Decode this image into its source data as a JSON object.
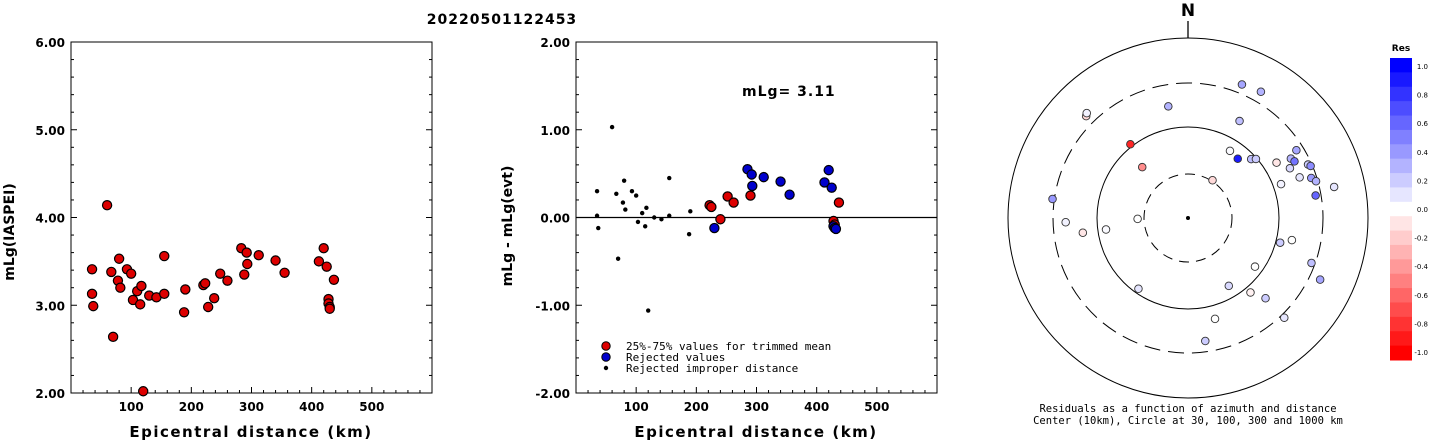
{
  "event_id": "20220501122453",
  "chart_data": [
    {
      "type": "scatter",
      "name": "magnitude-vs-distance",
      "xlabel": "Epicentral distance (km)",
      "ylabel": "mLg(IASPEI)",
      "xlim": [
        0,
        600
      ],
      "ylim": [
        2.0,
        6.0
      ],
      "xticks": [
        "100",
        "200",
        "300",
        "400",
        "500"
      ],
      "yticks": [
        "2.00",
        "3.00",
        "4.00",
        "5.00",
        "6.00"
      ],
      "points": [
        [
          35,
          3.41
        ],
        [
          35,
          3.13
        ],
        [
          37,
          2.99
        ],
        [
          60,
          4.14
        ],
        [
          67,
          3.38
        ],
        [
          70,
          2.64
        ],
        [
          78,
          3.28
        ],
        [
          80,
          3.53
        ],
        [
          82,
          3.2
        ],
        [
          93,
          3.41
        ],
        [
          100,
          3.36
        ],
        [
          103,
          3.06
        ],
        [
          110,
          3.16
        ],
        [
          115,
          3.01
        ],
        [
          117,
          3.22
        ],
        [
          120,
          2.02
        ],
        [
          130,
          3.11
        ],
        [
          142,
          3.09
        ],
        [
          155,
          3.56
        ],
        [
          155,
          3.13
        ],
        [
          188,
          2.92
        ],
        [
          190,
          3.18
        ],
        [
          220,
          3.23
        ],
        [
          223,
          3.25
        ],
        [
          228,
          2.98
        ],
        [
          238,
          3.08
        ],
        [
          248,
          3.36
        ],
        [
          260,
          3.28
        ],
        [
          283,
          3.65
        ],
        [
          288,
          3.35
        ],
        [
          292,
          3.6
        ],
        [
          293,
          3.47
        ],
        [
          312,
          3.57
        ],
        [
          340,
          3.51
        ],
        [
          355,
          3.37
        ],
        [
          412,
          3.5
        ],
        [
          420,
          3.65
        ],
        [
          425,
          3.44
        ],
        [
          428,
          3.07
        ],
        [
          428,
          3.02
        ],
        [
          430,
          2.98
        ],
        [
          430,
          2.96
        ],
        [
          437,
          3.29
        ]
      ]
    },
    {
      "type": "scatter",
      "name": "residual-vs-distance",
      "xlabel": "Epicentral distance (km)",
      "ylabel": "mLg - mLg(evt)",
      "annotation": "mLg= 3.11",
      "xlim": [
        0,
        600
      ],
      "ylim": [
        -2.0,
        2.0
      ],
      "xticks": [
        "100",
        "200",
        "300",
        "400",
        "500"
      ],
      "yticks": [
        "-2.00",
        "-1.00",
        "0.00",
        "1.00",
        "2.00"
      ],
      "legend": {
        "placement": "bottom-left",
        "entries": [
          {
            "label": "25%-75% values for trimmed mean",
            "color": "#dd0000",
            "marker": "large"
          },
          {
            "label": "Rejected values",
            "color": "#0000cc",
            "marker": "large"
          },
          {
            "label": "Rejected improper distance",
            "color": "#000000",
            "marker": "small"
          }
        ]
      },
      "series": [
        {
          "name": "25%-75% values for trimmed mean",
          "color": "#dd0000",
          "points": [
            [
              222,
              0.14
            ],
            [
              225,
              0.12
            ],
            [
              240,
              -0.02
            ],
            [
              252,
              0.24
            ],
            [
              262,
              0.17
            ],
            [
              290,
              0.25
            ],
            [
              428,
              -0.04
            ],
            [
              430,
              -0.08
            ],
            [
              437,
              0.17
            ]
          ]
        },
        {
          "name": "Rejected values",
          "color": "#0000cc",
          "points": [
            [
              230,
              -0.12
            ],
            [
              285,
              0.55
            ],
            [
              292,
              0.49
            ],
            [
              293,
              0.36
            ],
            [
              312,
              0.46
            ],
            [
              340,
              0.41
            ],
            [
              355,
              0.26
            ],
            [
              413,
              0.4
            ],
            [
              420,
              0.54
            ],
            [
              425,
              0.34
            ],
            [
              428,
              -0.1
            ],
            [
              430,
              -0.12
            ],
            [
              432,
              -0.13
            ]
          ]
        },
        {
          "name": "Rejected improper distance",
          "color": "#000000",
          "points": [
            [
              35,
              0.3
            ],
            [
              35,
              0.02
            ],
            [
              37,
              -0.12
            ],
            [
              60,
              1.03
            ],
            [
              67,
              0.27
            ],
            [
              70,
              -0.47
            ],
            [
              78,
              0.17
            ],
            [
              80,
              0.42
            ],
            [
              82,
              0.09
            ],
            [
              93,
              0.3
            ],
            [
              100,
              0.25
            ],
            [
              103,
              -0.05
            ],
            [
              110,
              0.05
            ],
            [
              115,
              -0.1
            ],
            [
              117,
              0.11
            ],
            [
              120,
              -1.06
            ],
            [
              130,
              0.0
            ],
            [
              142,
              -0.02
            ],
            [
              155,
              0.45
            ],
            [
              155,
              0.02
            ],
            [
              188,
              -0.19
            ],
            [
              190,
              0.07
            ]
          ]
        }
      ]
    },
    {
      "type": "scatter",
      "name": "azimuth-residual-polar",
      "north_label": "N",
      "caption_line1": "Residuals as a function of azimuth and distance",
      "caption_line2": "Center (10km), Circle at 30, 100, 300 and 1000 km",
      "ring_distances_km": [
        30,
        100,
        300,
        1000
      ],
      "stations": [
        {
          "az": 315,
          "r": 0.8,
          "res": -0.15
        },
        {
          "az": 316,
          "r": 0.81,
          "res": 0.05
        },
        {
          "az": 322,
          "r": 0.52,
          "res": -0.85
        },
        {
          "az": 318,
          "r": 0.38,
          "res": -0.45
        },
        {
          "az": 350,
          "r": 0.63,
          "res": 0.3
        },
        {
          "az": 22,
          "r": 0.8,
          "res": 0.35
        },
        {
          "az": 30,
          "r": 0.81,
          "res": 0.3
        },
        {
          "az": 28,
          "r": 0.61,
          "res": 0.25
        },
        {
          "az": 32,
          "r": 0.44,
          "res": 0.02
        },
        {
          "az": 40,
          "r": 0.43,
          "res": 0.9
        },
        {
          "az": 47,
          "r": 0.48,
          "res": 0.25
        },
        {
          "az": 49,
          "r": 0.5,
          "res": 0.2
        },
        {
          "az": 33,
          "r": 0.25,
          "res": -0.15
        },
        {
          "az": 58,
          "r": 0.58,
          "res": -0.1
        },
        {
          "az": 60,
          "r": 0.66,
          "res": 0.3
        },
        {
          "az": 62,
          "r": 0.67,
          "res": 0.55
        },
        {
          "az": 58,
          "r": 0.71,
          "res": 0.35
        },
        {
          "az": 64,
          "r": 0.63,
          "res": 0.15
        },
        {
          "az": 66,
          "r": 0.73,
          "res": 0.2
        },
        {
          "az": 67,
          "r": 0.74,
          "res": 0.45
        },
        {
          "az": 70,
          "r": 0.55,
          "res": 0.05
        },
        {
          "az": 70,
          "r": 0.66,
          "res": 0.1
        },
        {
          "az": 72,
          "r": 0.72,
          "res": 0.4
        },
        {
          "az": 74,
          "r": 0.74,
          "res": 0.3
        },
        {
          "az": 80,
          "r": 0.72,
          "res": 0.6
        },
        {
          "az": 78,
          "r": 0.83,
          "res": 0.1
        },
        {
          "az": 105,
          "r": 0.53,
          "res": 0.2
        },
        {
          "az": 102,
          "r": 0.59,
          "res": 0.0
        },
        {
          "az": 110,
          "r": 0.73,
          "res": 0.25
        },
        {
          "az": 115,
          "r": 0.81,
          "res": 0.35
        },
        {
          "az": 126,
          "r": 0.46,
          "res": 0.0
        },
        {
          "az": 136,
          "r": 0.62,
          "res": 0.2
        },
        {
          "az": 136,
          "r": 0.77,
          "res": 0.1
        },
        {
          "az": 140,
          "r": 0.54,
          "res": -0.05
        },
        {
          "az": 149,
          "r": 0.44,
          "res": 0.15
        },
        {
          "az": 165,
          "r": 0.58,
          "res": 0.0
        },
        {
          "az": 172,
          "r": 0.69,
          "res": 0.2
        },
        {
          "az": 215,
          "r": 0.48,
          "res": 0.1
        },
        {
          "az": 262,
          "r": 0.46,
          "res": 0.02
        },
        {
          "az": 262,
          "r": 0.59,
          "res": -0.1
        },
        {
          "az": 268,
          "r": 0.68,
          "res": 0.05
        },
        {
          "az": 278,
          "r": 0.76,
          "res": 0.4
        },
        {
          "az": 269,
          "r": 0.28,
          "res": 0.0
        }
      ],
      "colorbar": {
        "title": "Res",
        "labels": [
          "1.0",
          "0.8",
          "0.6",
          "0.4",
          "0.2",
          "0.0",
          "-0.2",
          "-0.4",
          "-0.6",
          "-0.8",
          "-1.0"
        ]
      }
    }
  ]
}
